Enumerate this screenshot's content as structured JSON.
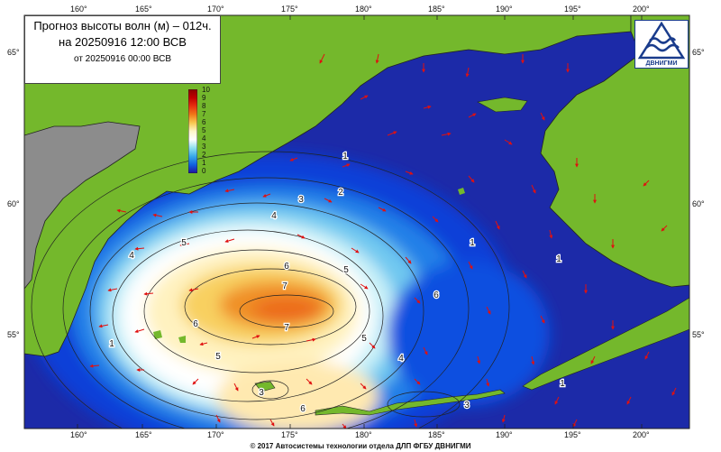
{
  "header": {
    "title": "Прогноз высоты волн (м) – 012ч.",
    "valid_time": "на 20250916 12:00 ВСВ",
    "run_time": "от 20250916 00:00 ВСВ"
  },
  "logo": {
    "text": "ДВНИГМИ",
    "icon": "waves-triangle-logo"
  },
  "axes": {
    "lon_labels": [
      "160°",
      "165°",
      "170°",
      "175°",
      "180°",
      "185°",
      "190°",
      "195°",
      "200°"
    ],
    "lat_labels": [
      "65°",
      "60°",
      "55°"
    ]
  },
  "colorbar": {
    "labels": [
      "10",
      "9",
      "8",
      "7",
      "6",
      "5",
      "4",
      "3",
      "2",
      "1",
      "0"
    ],
    "colors": [
      "#8b0000",
      "#c00000",
      "#e83010",
      "#f07818",
      "#f8c850",
      "#fff7c8",
      "#ffffff",
      "#8ee0f0",
      "#38a8e8",
      "#1060e0",
      "#2010a0"
    ]
  },
  "contour_labels": [
    "1",
    "2",
    "3",
    "4",
    "5",
    "6",
    "7",
    "6",
    "5",
    "4",
    "5",
    "6",
    "7",
    "4",
    "5",
    "6",
    "3",
    "3",
    "1",
    "1",
    "1",
    "1"
  ],
  "colors": {
    "land": "#74b82c",
    "land_gray": "#8c8c8c",
    "deep_sea": "#1c2aa8",
    "arrow": "#e01010"
  },
  "footer": {
    "copyright": "© 2017 Автоcистемы технологии отдела ДЛП ФГБУ ДВНИГМИ"
  }
}
